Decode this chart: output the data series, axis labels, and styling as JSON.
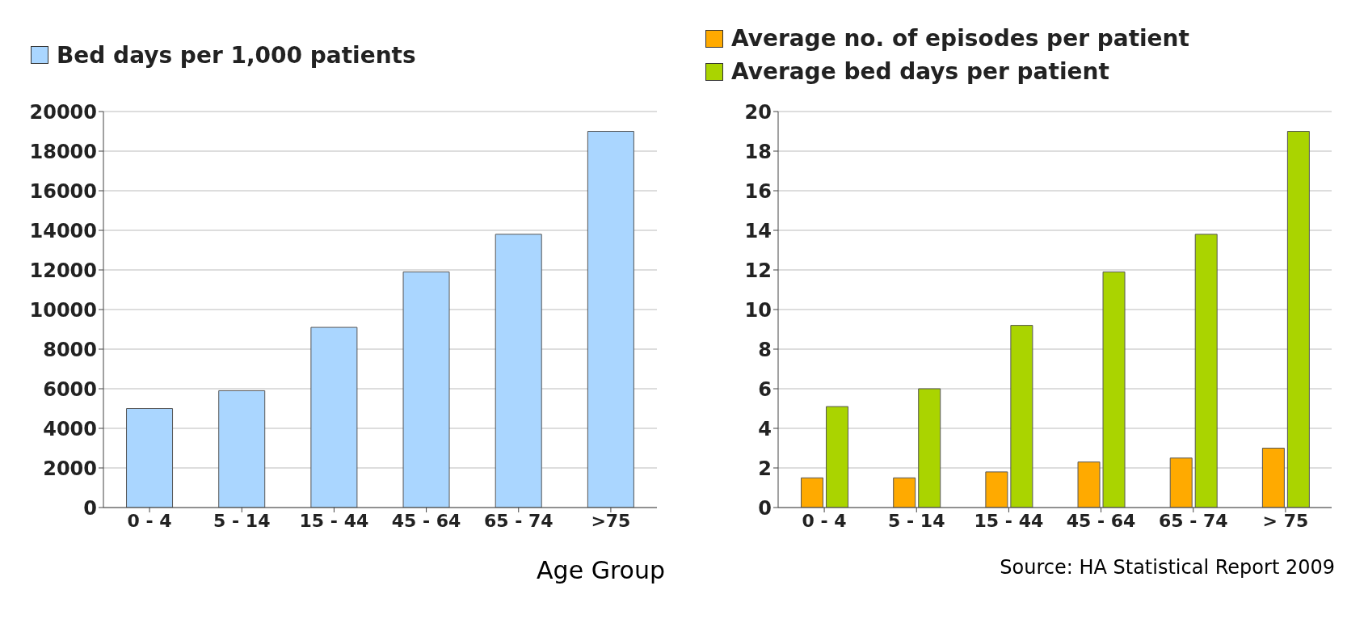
{
  "chart_data": [
    {
      "type": "bar",
      "categories": [
        "0 - 4",
        "5 - 14",
        "15 - 44",
        "45 - 64",
        "65 - 74",
        ">75"
      ],
      "xlabel": "Age Group",
      "series": [
        {
          "name": "Bed days per 1,000 patients",
          "color": "#aad6ff",
          "values": [
            5000,
            5900,
            9100,
            11900,
            13800,
            19000
          ]
        }
      ],
      "ylim": [
        0,
        20000
      ],
      "yticks": [
        0,
        2000,
        4000,
        6000,
        8000,
        10000,
        12000,
        14000,
        16000,
        18000,
        20000
      ],
      "grid": "y",
      "legend": "top left"
    },
    {
      "type": "bar",
      "categories": [
        "0 - 4",
        "5 - 14",
        "15 - 44",
        "45 - 64",
        "65 - 74",
        "> 75"
      ],
      "series": [
        {
          "name": "Average no. of episodes per patient",
          "color": "#ffaa00",
          "values": [
            1.5,
            1.5,
            1.8,
            2.3,
            2.5,
            3.0
          ]
        },
        {
          "name": "Average bed days per patient",
          "color": "#aad400",
          "values": [
            5.1,
            6.0,
            9.2,
            11.9,
            13.8,
            19.0
          ]
        }
      ],
      "ylim": [
        0,
        20
      ],
      "yticks": [
        0,
        2,
        4,
        6,
        8,
        10,
        12,
        14,
        16,
        18,
        20
      ],
      "grid": "y",
      "legend": "top left",
      "annotations": [
        "Source: HA Statistical Report 2009"
      ]
    }
  ]
}
